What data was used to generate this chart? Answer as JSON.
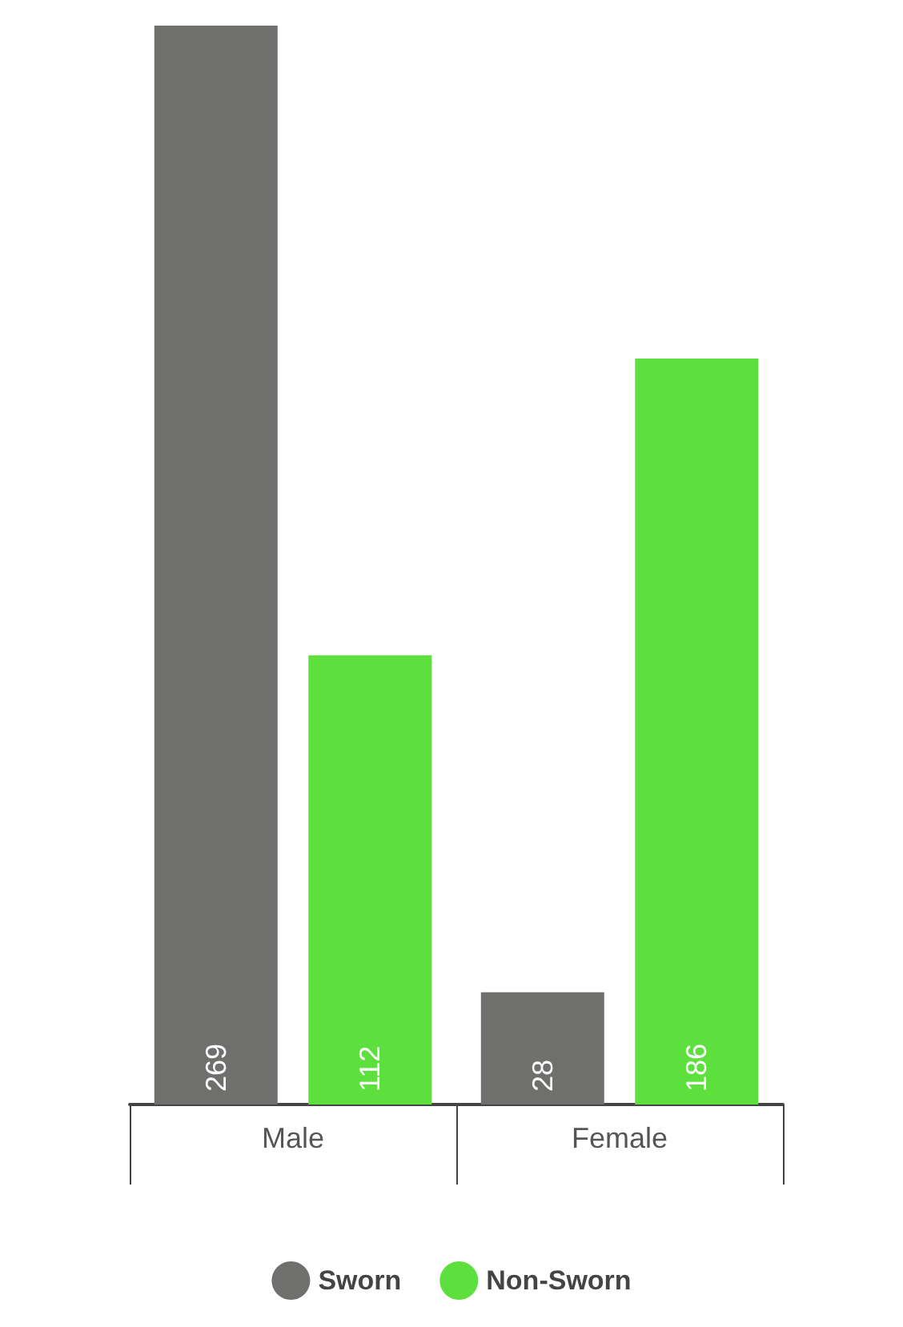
{
  "chart_data": {
    "type": "bar",
    "categories": [
      "Male",
      "Female"
    ],
    "series": [
      {
        "name": "Sworn",
        "color": "#6f6f6d",
        "values": [
          269,
          28
        ]
      },
      {
        "name": "Non-Sworn",
        "color": "#5ddf3e",
        "values": [
          112,
          186
        ]
      }
    ],
    "data_labels": true,
    "legend": "bottom",
    "grid": false
  }
}
